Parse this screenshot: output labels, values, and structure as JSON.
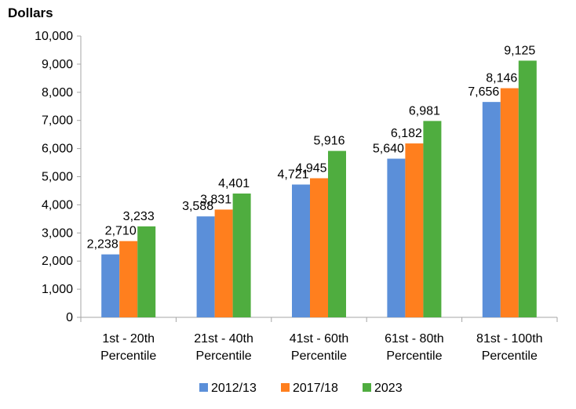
{
  "chart_data": {
    "type": "bar",
    "title": "",
    "ylabel": "Dollars",
    "xlabel": "",
    "ylim": [
      0,
      10000
    ],
    "yticks": [
      0,
      1000,
      2000,
      3000,
      4000,
      5000,
      6000,
      7000,
      8000,
      9000,
      10000
    ],
    "ytick_labels": [
      "0",
      "1,000",
      "2,000",
      "3,000",
      "4,000",
      "5,000",
      "6,000",
      "7,000",
      "8,000",
      "9,000",
      "10,000"
    ],
    "categories": [
      [
        "1st - 20th",
        "Percentile"
      ],
      [
        "21st - 40th",
        "Percentile"
      ],
      [
        "41st - 60th",
        "Percentile"
      ],
      [
        "61st - 80th",
        "Percentile"
      ],
      [
        "81st - 100th",
        "Percentile"
      ]
    ],
    "series": [
      {
        "name": "2012/13",
        "color": "#5b8fd9",
        "values": [
          2238,
          3588,
          4721,
          5640,
          7656
        ],
        "labels": [
          "2,238",
          "3,588",
          "4,721",
          "5,640",
          "7,656"
        ]
      },
      {
        "name": "2017/18",
        "color": "#ff7f1e",
        "values": [
          2710,
          3831,
          4945,
          6182,
          8146
        ],
        "labels": [
          "2,710",
          "3,831",
          "4,945",
          "6,182",
          "8,146"
        ]
      },
      {
        "name": "2023",
        "color": "#4fad3f",
        "values": [
          3233,
          4401,
          5916,
          6981,
          9125
        ],
        "labels": [
          "3,233",
          "4,401",
          "5,916",
          "6,981",
          "9,125"
        ]
      }
    ],
    "grid": false,
    "legend_position": "bottom"
  }
}
